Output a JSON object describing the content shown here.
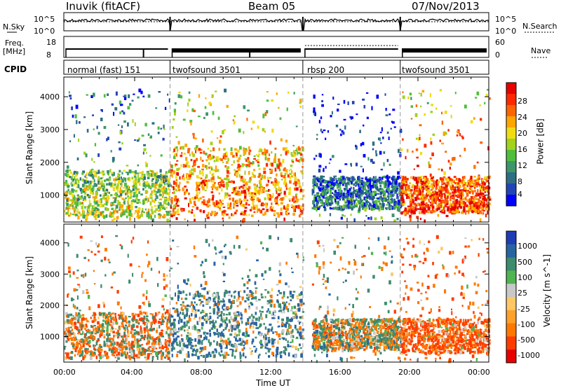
{
  "header": {
    "station": "Inuvik (fitACF)",
    "beam": "Beam 05",
    "date": "07/Nov/2013"
  },
  "strip_labels": {
    "nsky": "N.Sky",
    "freq_line1": "Freq.",
    "freq_line2": "[MHz]",
    "cpid": "CPID",
    "nsearch": "N.Search",
    "nave": "Nave",
    "nsky_ticks": [
      "10^5",
      "10^0"
    ],
    "nsearch_ticks": [
      "10^5",
      "10^0"
    ],
    "freq_ticks": [
      "18",
      "8"
    ],
    "nave_ticks": [
      "60",
      "0"
    ]
  },
  "cpid_segments": [
    {
      "label": "normal (fast) 151",
      "start_hour": 0.0,
      "end_hour": 6.0
    },
    {
      "label": "twofsound 3501",
      "start_hour": 6.0,
      "end_hour": 13.5
    },
    {
      "label": "rbsp 200",
      "start_hour": 13.5,
      "end_hour": 19.0
    },
    {
      "label": "twofsound 3501",
      "start_hour": 19.0,
      "end_hour": 24.0
    }
  ],
  "axes": {
    "ylabel": "Slant Range [km]",
    "xlabel": "Time UT",
    "x_ticks": [
      "00:00",
      "04:00",
      "08:00",
      "12:00",
      "16:00",
      "20:00",
      "00:00"
    ],
    "x_range_hours": [
      0,
      24
    ],
    "y_range_km": [
      180,
      4600
    ],
    "y_ticks": [
      1000,
      2000,
      3000,
      4000
    ]
  },
  "power_colorbar": {
    "label": "Power [dB]",
    "ticks": [
      "28",
      "24",
      "20",
      "16",
      "12",
      "8",
      "4"
    ],
    "range": [
      0,
      30
    ],
    "colors": [
      "#0000ff",
      "#2344b4",
      "#2d6e82",
      "#3c966a",
      "#50be3c",
      "#a0d21e",
      "#f0dc14",
      "#ffa500",
      "#ff6400",
      "#ff2800",
      "#e60000"
    ]
  },
  "velocity_colorbar": {
    "label": "Velocity [m s^-1]",
    "ticks": [
      "1000",
      "500",
      "100",
      "25",
      "-25",
      "-100",
      "-500",
      "-1000"
    ],
    "colors": [
      "#1e3cb4",
      "#2864a0",
      "#3c8c6e",
      "#50b450",
      "#c8c8c8",
      "#ffc864",
      "#ffa028",
      "#ff7800",
      "#ff3c00",
      "#e60000"
    ]
  },
  "chart_data": {
    "type": "heatmap",
    "title": "Inuvik (fitACF) Beam 05 07/Nov/2013",
    "xlabel": "Time UT",
    "ylabel": "Slant Range [km]",
    "xlim_hours": [
      0,
      24
    ],
    "ylim_km": [
      180,
      4600
    ],
    "panels": [
      "Power [dB]",
      "Velocity [m s^-1]"
    ],
    "scatter_regions": [
      {
        "start_hour": 0.0,
        "end_hour": 6.0,
        "range_min_km": 350,
        "range_max_km": 1800,
        "power_db": 16,
        "velocity": -100
      },
      {
        "start_hour": 6.0,
        "end_hour": 13.5,
        "range_min_km": 400,
        "range_max_km": 2500,
        "power_db": 24,
        "velocity": 200
      },
      {
        "start_hour": 14.0,
        "end_hour": 19.0,
        "range_min_km": 600,
        "range_max_km": 1600,
        "power_db": 8,
        "velocity": 0
      },
      {
        "start_hour": 19.0,
        "end_hour": 24.0,
        "range_min_km": 500,
        "range_max_km": 1600,
        "power_db": 26,
        "velocity": -300
      }
    ]
  }
}
